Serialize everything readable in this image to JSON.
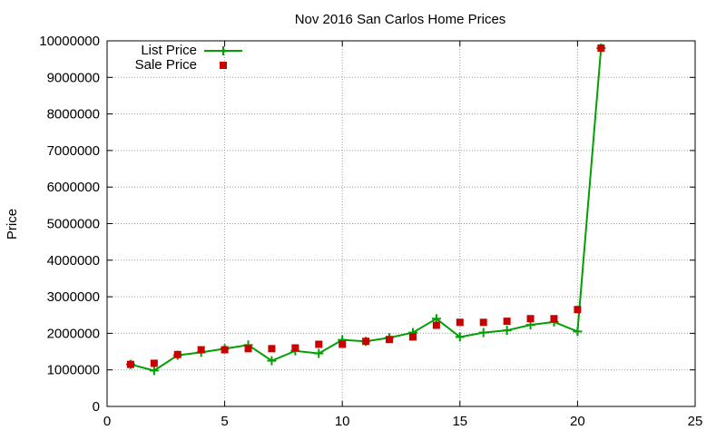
{
  "chart_data": {
    "type": "line",
    "title": "Nov 2016 San Carlos Home Prices",
    "xlabel": "",
    "ylabel": "Price",
    "xlim": [
      0,
      25
    ],
    "ylim": [
      0,
      10000000
    ],
    "x_ticks": [
      0,
      5,
      10,
      15,
      20,
      25
    ],
    "y_ticks": [
      0,
      1000000,
      2000000,
      3000000,
      4000000,
      5000000,
      6000000,
      7000000,
      8000000,
      9000000,
      10000000
    ],
    "grid": true,
    "legend_position": "top-left",
    "series": [
      {
        "name": "List Price",
        "style": "line+cross",
        "color": "#00a000",
        "x": [
          1,
          2,
          3,
          4,
          5,
          6,
          7,
          8,
          9,
          10,
          11,
          12,
          13,
          14,
          15,
          16,
          17,
          18,
          19,
          20,
          21
        ],
        "values": [
          1150000,
          980000,
          1400000,
          1480000,
          1580000,
          1680000,
          1250000,
          1520000,
          1450000,
          1820000,
          1780000,
          1880000,
          2020000,
          2400000,
          1900000,
          2020000,
          2080000,
          2230000,
          2310000,
          2050000,
          9800000
        ]
      },
      {
        "name": "Sale Price",
        "style": "square",
        "color": "#c80000",
        "x": [
          1,
          2,
          3,
          4,
          5,
          6,
          7,
          8,
          9,
          10,
          11,
          12,
          13,
          14,
          15,
          16,
          17,
          18,
          19,
          20,
          21
        ],
        "values": [
          1150000,
          1180000,
          1420000,
          1550000,
          1550000,
          1580000,
          1580000,
          1600000,
          1700000,
          1700000,
          1780000,
          1830000,
          1900000,
          2220000,
          2300000,
          2300000,
          2330000,
          2400000,
          2400000,
          2650000,
          9800000
        ]
      }
    ]
  }
}
